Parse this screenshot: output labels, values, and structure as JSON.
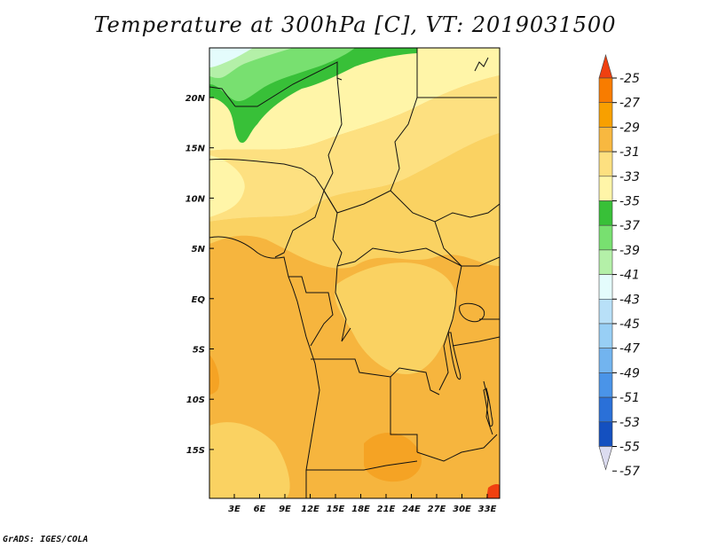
{
  "title": "Temperature at 300hPa [C], VT: 2019031500",
  "footer": "GrADS: IGES/COLA",
  "latitude_labels": [
    "20N",
    "15N",
    "10N",
    "5N",
    "EQ",
    "5S",
    "10S",
    "15S"
  ],
  "longitude_labels": [
    "3E",
    "6E",
    "9E",
    "12E",
    "15E",
    "18E",
    "21E",
    "24E",
    "27E",
    "30E",
    "33E"
  ],
  "colorbar": {
    "labels": [
      "-25",
      "-27",
      "-29",
      "-31",
      "-33",
      "-35",
      "-37",
      "-39",
      "-41",
      "-43",
      "-45",
      "-47",
      "-49",
      "-51",
      "-53",
      "-55",
      "-57"
    ],
    "colors": [
      "#f04010",
      "#f87c00",
      "#f8a000",
      "#f8b840",
      "#fde080",
      "#fff5a8",
      "#38c038",
      "#78e070",
      "#b4f0a8",
      "#e4fcfc",
      "#b8e0f8",
      "#98cff5",
      "#72b4ef",
      "#4a94e8",
      "#2a70d8",
      "#1450c0",
      "#000078"
    ]
  },
  "map_colors": {
    "warm_orange": "#f6b53e",
    "light_orange": "#fad262",
    "pale_yellow": "#fde080",
    "lightest_yellow": "#fff5a8",
    "green": "#38c038",
    "light_green": "#78e070",
    "pale_green": "#b4f0a8",
    "deep_orange": "#f5a324",
    "red_orange": "#f04010"
  }
}
